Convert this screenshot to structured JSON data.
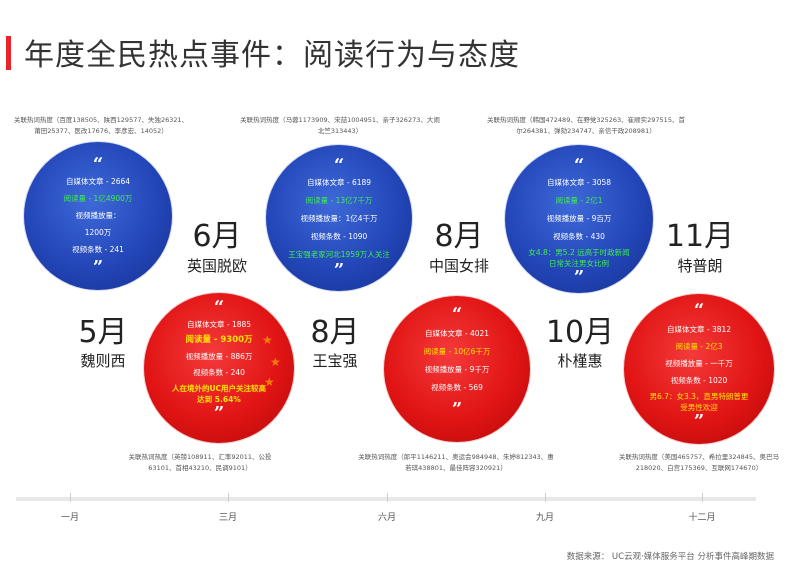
{
  "title": "年度全民热点事件：阅读行为与态度",
  "source": "数据来源： UC云观·媒体服务平台 分析事件高峰期数据",
  "axis": [
    "一月",
    "三月",
    "六月",
    "九月",
    "十二月"
  ],
  "quote_mark": "“",
  "quote_mark_end": "”",
  "events": [
    {
      "month": "5月",
      "name": "魏则西",
      "color": "blue",
      "keywords": "关联热词热度（百度138505、陕西129577、失独26321、莆田25377、医改17676、李彦宏、14052）",
      "lines": [
        "自媒体文章 - 2664",
        "阅读量 - 1亿4900万",
        "视频播放量：",
        "1200万",
        "视频条数 - 241"
      ],
      "note": ""
    },
    {
      "month": "6月",
      "name": "英国脱欧",
      "color": "red",
      "keywords": "关联热词热度（英镑108911、汇率92011、公投63101、首相43210、民调9101）",
      "lines": [
        "自媒体文章 - 1885",
        "阅读量 - 9300万",
        "视频播放量 - 886万",
        "视频条数 - 240"
      ],
      "note": "人在境外的UC用户关注较高 达到 5.64%"
    },
    {
      "month": "8月",
      "name": "王宝强",
      "color": "blue",
      "keywords": "关联热词热度（马蓉1173909、宋喆1004951、亲子326273、大闹北竺313443）",
      "lines": [
        "自媒体文章 - 6189",
        "阅读量 - 13亿7千万",
        "视频播放量：1亿4千万",
        "视频条数 - 1090"
      ],
      "note": "王宝强老家河北1959万人关注"
    },
    {
      "month": "8月",
      "name": "中国女排",
      "color": "red",
      "keywords": "关联热词热度（郎平1146211、奥运会984948、朱婷812343、惠若琪438801、最佳阵容320921）",
      "lines": [
        "自媒体文章 - 4021",
        "阅读量 - 10亿6千万",
        "视频播放量 - 9千万",
        "视频条数 - 569"
      ],
      "note": ""
    },
    {
      "month": "10月",
      "name": "朴槿惠",
      "color": "blue",
      "keywords": "关联热词热度（韩国472489、在野党325263、崔顺实297515、首尔264381、弹劾234747、亲信干政208981）",
      "lines": [
        "自媒体文章 - 3058",
        "阅读量 - 2亿1",
        "视频播放量 - 9百万",
        "视频条数 - 430"
      ],
      "note": "女4.8：男5.2 远高于时政新闻日常关注男女比例"
    },
    {
      "month": "11月",
      "name": "特普朗",
      "color": "red",
      "keywords": "关联热词热度（美国465757、希拉里324845、奥巴马218020、白宫175369、互联网174670）",
      "lines": [
        "自媒体文章 - 3812",
        "阅读量 - 2亿3",
        "视频播放量 - 一千万",
        "视频条数 - 1020"
      ],
      "note": "男6.7：女3.3，直男特朗普更受男性欢迎"
    }
  ]
}
